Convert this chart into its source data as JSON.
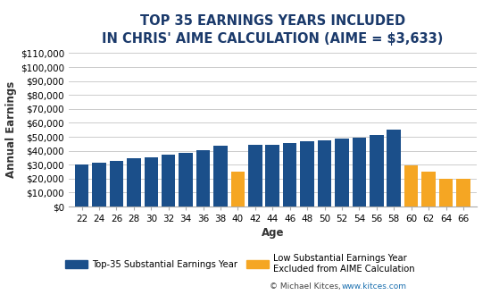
{
  "title": "TOP 35 EARNINGS YEARS INCLUDED\nIN CHRIS' AIME CALCULATION (AIME = $3,633)",
  "xlabel": "Age",
  "ylabel": "Annual Earnings",
  "bar_color_blue": "#1B4F8A",
  "bar_color_orange": "#F5A623",
  "background_color": "#FFFFFF",
  "title_color": "#1B3A6B",
  "axis_color": "#333333",
  "grid_color": "#CCCCCC",
  "ylim": [
    0,
    110000
  ],
  "yticks": [
    0,
    10000,
    20000,
    30000,
    40000,
    50000,
    60000,
    70000,
    80000,
    90000,
    100000,
    110000
  ],
  "legend_blue_label": "Top-35 Substantial Earnings Year",
  "legend_orange_label": "Low Substantial Earnings Year\nExcluded from AIME Calculation",
  "copyright_text": "© Michael Kitces, ",
  "copyright_url": "www.kitces.com",
  "title_fontsize": 10.5,
  "label_fontsize": 8.5,
  "tick_fontsize": 7.5,
  "ages_full": [
    22,
    24,
    26,
    28,
    30,
    32,
    34,
    36,
    38,
    40,
    42,
    44,
    46,
    48,
    50,
    52,
    54,
    56,
    58,
    60,
    62,
    64,
    66
  ],
  "earnings_full": [
    30000,
    31500,
    33000,
    34500,
    35500,
    37500,
    38500,
    40500,
    43500,
    25000,
    44000,
    44500,
    45500,
    46500,
    47500,
    48500,
    49500,
    51000,
    55000,
    29500,
    25000,
    20000,
    20000
  ],
  "orange_ages": [
    40,
    60,
    62,
    64,
    66
  ]
}
